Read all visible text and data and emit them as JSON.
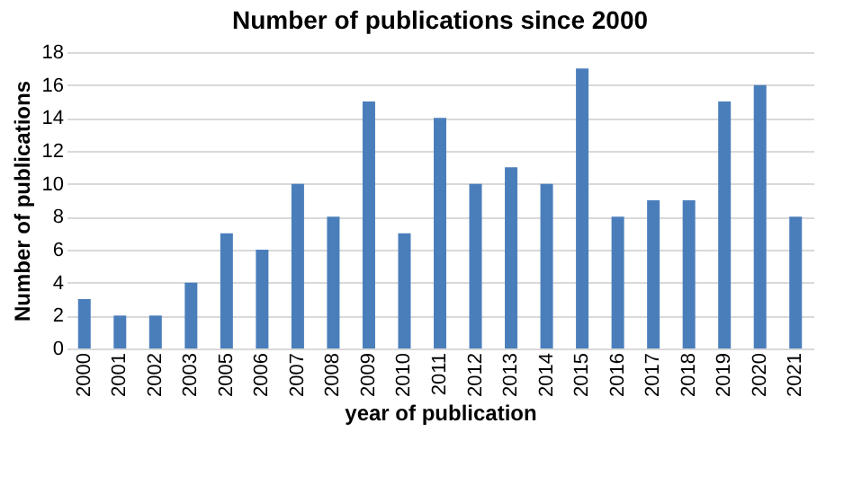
{
  "chart_data": {
    "type": "bar",
    "title": "Number of publications since 2000",
    "xlabel": "year of publication",
    "ylabel": "Number of publications",
    "categories": [
      "2000",
      "2001",
      "2002",
      "2003",
      "2005",
      "2006",
      "2007",
      "2008",
      "2009",
      "2010",
      "2011",
      "2012",
      "2013",
      "2014",
      "2015",
      "2016",
      "2017",
      "2018",
      "2019",
      "2020",
      "2021"
    ],
    "values": [
      3,
      2,
      2,
      4,
      7,
      6,
      10,
      8,
      15,
      7,
      14,
      10,
      11,
      10,
      17,
      8,
      9,
      9,
      15,
      16,
      8
    ],
    "color": "#4a7ebb",
    "ylim": [
      0,
      18
    ],
    "yticks": [
      0,
      2,
      4,
      6,
      8,
      10,
      12,
      14,
      16,
      18
    ],
    "grid": "y"
  }
}
